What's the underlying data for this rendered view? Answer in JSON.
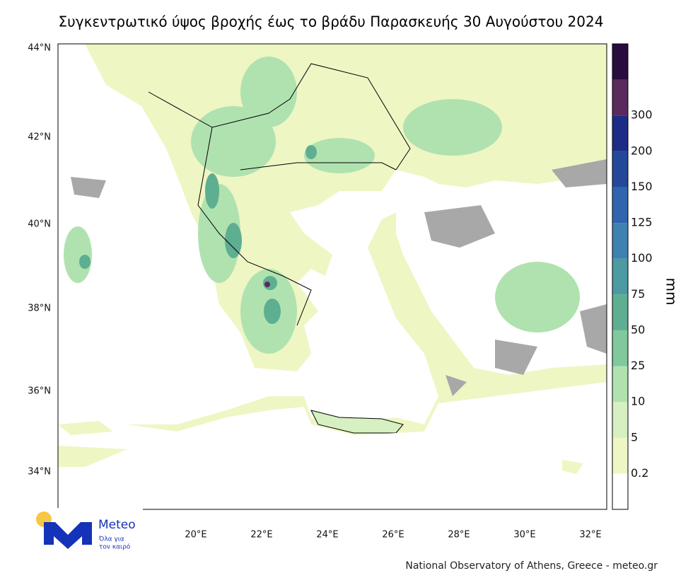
{
  "title": "Συγκεντρωτικό ύψος βροχής έως το βράδυ Παρασκευής 30 Αυγούστου 2024",
  "lat_labels": [
    "44°N",
    "42°N",
    "40°N",
    "38°N",
    "36°N",
    "34°N"
  ],
  "lon_labels": [
    "20°E",
    "22°E",
    "24°E",
    "26°E",
    "28°E",
    "30°E",
    "32°E"
  ],
  "colorbar": {
    "unit": "mm",
    "levels": [
      0.2,
      5,
      10,
      25,
      50,
      75,
      100,
      125,
      150,
      200,
      300
    ],
    "colors": [
      "#ffffff",
      "#eef6c4",
      "#d6f0c2",
      "#b0e2b0",
      "#80c99c",
      "#5eae92",
      "#4c9aa2",
      "#3f82b2",
      "#2f65ae",
      "#23489a",
      "#1b2b86",
      "#5a2a5c",
      "#2a0b3e"
    ]
  },
  "logo": {
    "name": "Meteo",
    "tagline": [
      "Όλα για",
      "τον καιρό"
    ]
  },
  "credit": "National Observatory of Athens, Greece - meteo.gr"
}
